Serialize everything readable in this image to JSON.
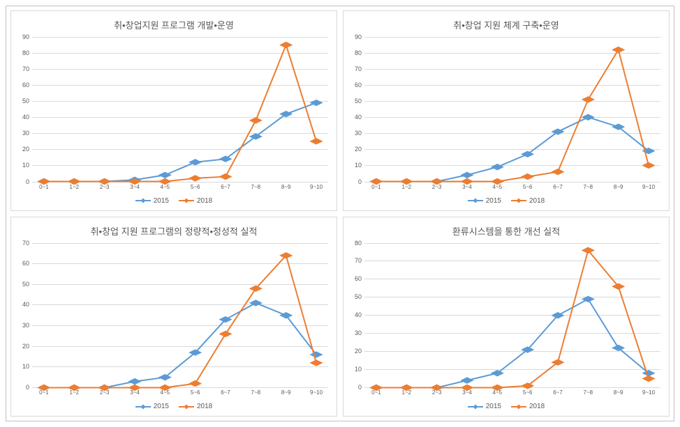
{
  "layout": {
    "outer_border_color": "#c0c0c0",
    "panel_border_color": "#d9d9d9",
    "background": "#ffffff"
  },
  "palette": {
    "series_2015": "#5b9bd5",
    "series_2018": "#ed7d31",
    "grid": "#d9d9d9",
    "text": "#595959"
  },
  "categories": [
    "0~1",
    "1~2",
    "2~3",
    "3~4",
    "4~5",
    "5~6",
    "6~7",
    "7~8",
    "8~9",
    "9~10"
  ],
  "legend": {
    "series1_label": "2015",
    "series2_label": "2018"
  },
  "charts": [
    {
      "id": "top-left",
      "title": "취•창업지원 프로그램 개발•운영",
      "ylim": [
        0,
        90
      ],
      "ytick_step": 10,
      "series": {
        "2015": [
          0,
          0,
          0,
          1,
          4,
          12,
          14,
          28,
          42,
          49
        ],
        "2018": [
          0,
          0,
          0,
          0,
          0,
          2,
          3,
          38,
          85,
          25
        ]
      }
    },
    {
      "id": "top-right",
      "title": "취•창업 지원 체계 구축•운영",
      "ylim": [
        0,
        90
      ],
      "ytick_step": 10,
      "series": {
        "2015": [
          0,
          0,
          0,
          4,
          9,
          17,
          31,
          40,
          34,
          19
        ],
        "2018": [
          0,
          0,
          0,
          0,
          0,
          3,
          6,
          51,
          82,
          10
        ]
      }
    },
    {
      "id": "bottom-left",
      "title": "취•창업 지원 프로그램의 정량적•정성적 실적",
      "ylim": [
        0,
        70
      ],
      "ytick_step": 10,
      "series": {
        "2015": [
          0,
          0,
          0,
          3,
          5,
          17,
          33,
          41,
          35,
          16
        ],
        "2018": [
          0,
          0,
          0,
          0,
          0,
          2,
          26,
          48,
          64,
          12
        ]
      }
    },
    {
      "id": "bottom-right",
      "title": "환류시스템을 통한 개선 실적",
      "ylim": [
        0,
        80
      ],
      "ytick_step": 10,
      "series": {
        "2015": [
          0,
          0,
          0,
          4,
          8,
          21,
          40,
          49,
          22,
          8
        ],
        "2018": [
          0,
          0,
          0,
          0,
          0,
          1,
          14,
          76,
          56,
          5
        ]
      }
    }
  ],
  "style": {
    "title_fontsize": 13,
    "axis_label_fontsize": 9,
    "line_width": 2,
    "marker_size": 3.2,
    "marker_shape": "diamond"
  }
}
